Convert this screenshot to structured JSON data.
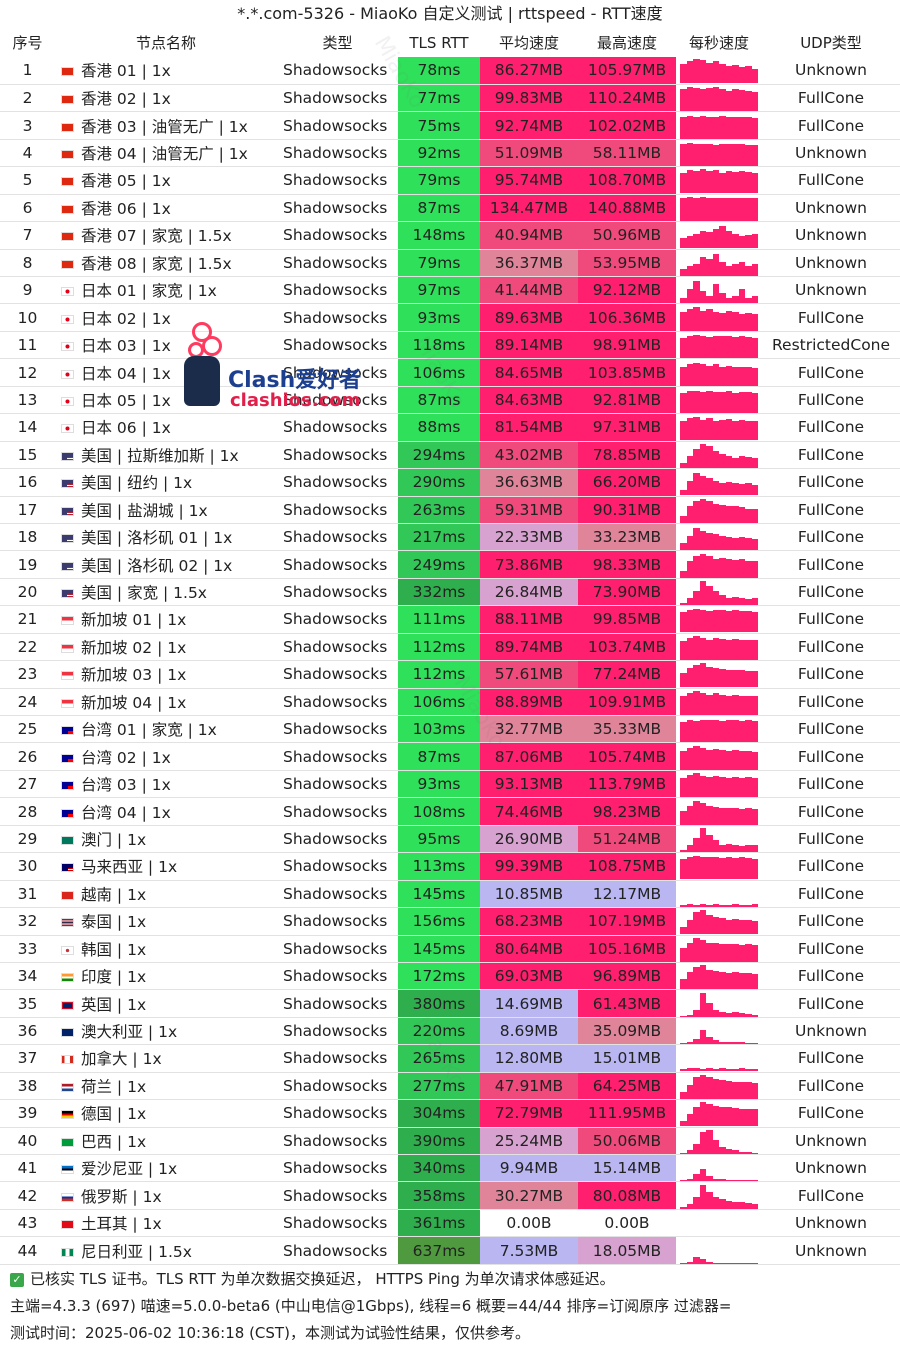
{
  "title": "*.*.com-5326 - MiaoKo 自定义测试 | rttspeed - RTT速度",
  "headers": [
    "序号",
    "节点名称",
    "类型",
    "TLS RTT",
    "平均速度",
    "最高速度",
    "每秒速度",
    "UDP类型"
  ],
  "watermark": "MiaoKo",
  "logo": {
    "text1": "Clash爱好者",
    "text2": "clashios.com"
  },
  "colors": {
    "rtt_green": "#2fe05a",
    "fast_pink": "#ff1f6e",
    "mid_pink": "#e0849a",
    "slow_lavender": "#b9b6f2",
    "spark": "#ff1f6e"
  },
  "rows": [
    {
      "idx": "1",
      "flag": "hk",
      "name": "香港 01 | 1x",
      "type": "Shadowsocks",
      "rtt": "78ms",
      "avg": "86.27MB",
      "max": "105.97MB",
      "udp": "Unknown",
      "speed_level": [
        0.8,
        0.9,
        1,
        0.95,
        0.85,
        0.9,
        0.8,
        0.7,
        0.75,
        0.65,
        0.7,
        0.6
      ]
    },
    {
      "idx": "2",
      "flag": "hk",
      "name": "香港 02 | 1x",
      "type": "Shadowsocks",
      "rtt": "77ms",
      "avg": "99.83MB",
      "max": "110.24MB",
      "udp": "FullCone",
      "speed_level": [
        0.9,
        1,
        0.95,
        0.9,
        0.95,
        1,
        0.9,
        0.85,
        0.9,
        0.88,
        0.85,
        0.8
      ]
    },
    {
      "idx": "3",
      "flag": "hk",
      "name": "香港 03 | 油管无广 | 1x",
      "type": "Shadowsocks",
      "rtt": "75ms",
      "avg": "92.74MB",
      "max": "102.02MB",
      "udp": "FullCone",
      "speed_level": [
        0.9,
        0.95,
        0.9,
        0.95,
        0.9,
        0.9,
        0.95,
        0.9,
        0.92,
        0.9,
        0.9,
        0.88
      ]
    },
    {
      "idx": "4",
      "flag": "hk",
      "name": "香港 04 | 油管无广 | 1x",
      "type": "Shadowsocks",
      "rtt": "92ms",
      "avg": "51.09MB",
      "max": "58.11MB",
      "udp": "Unknown",
      "speed_level": [
        0.9,
        0.95,
        0.9,
        0.92,
        0.9,
        0.88,
        0.9,
        0.92,
        0.9,
        0.9,
        0.88,
        0.86
      ]
    },
    {
      "idx": "5",
      "flag": "hk",
      "name": "香港 05 | 1x",
      "type": "Shadowsocks",
      "rtt": "79ms",
      "avg": "95.74MB",
      "max": "108.70MB",
      "udp": "FullCone",
      "speed_level": [
        0.85,
        0.95,
        0.9,
        1,
        0.9,
        0.95,
        0.85,
        0.9,
        0.88,
        0.9,
        0.86,
        0.84
      ]
    },
    {
      "idx": "6",
      "flag": "hk",
      "name": "香港 06 | 1x",
      "type": "Shadowsocks",
      "rtt": "87ms",
      "avg": "134.47MB",
      "max": "140.88MB",
      "udp": "Unknown",
      "speed_level": [
        0.95,
        1,
        0.95,
        0.98,
        0.95,
        0.96,
        0.95,
        0.97,
        0.95,
        0.96,
        0.94,
        0.95
      ]
    },
    {
      "idx": "7",
      "flag": "hk",
      "name": "香港 07 | 家宽 | 1.5x",
      "type": "Shadowsocks",
      "rtt": "148ms",
      "avg": "40.94MB",
      "max": "50.96MB",
      "udp": "Unknown",
      "speed_level": [
        0.4,
        0.5,
        0.6,
        0.7,
        0.65,
        0.8,
        0.9,
        0.7,
        0.6,
        0.5,
        0.55,
        0.6
      ]
    },
    {
      "idx": "8",
      "flag": "hk",
      "name": "香港 08 | 家宽 | 1.5x",
      "type": "Shadowsocks",
      "rtt": "79ms",
      "avg": "36.37MB",
      "max": "53.95MB",
      "udp": "Unknown",
      "speed_level": [
        0.3,
        0.4,
        0.5,
        0.8,
        0.7,
        0.9,
        0.6,
        0.4,
        0.5,
        0.6,
        0.4,
        0.5
      ]
    },
    {
      "idx": "9",
      "flag": "jp",
      "name": "日本 01 | 家宽 | 1x",
      "type": "Shadowsocks",
      "rtt": "97ms",
      "avg": "41.44MB",
      "max": "92.12MB",
      "udp": "Unknown",
      "speed_level": [
        0.2,
        0.6,
        0.9,
        0.5,
        0.3,
        0.8,
        0.4,
        0.2,
        0.3,
        0.6,
        0.2,
        0.3
      ]
    },
    {
      "idx": "10",
      "flag": "jp",
      "name": "日本 02 | 1x",
      "type": "Shadowsocks",
      "rtt": "93ms",
      "avg": "89.63MB",
      "max": "106.36MB",
      "udp": "FullCone",
      "speed_level": [
        0.8,
        0.9,
        1,
        0.85,
        0.9,
        0.8,
        0.75,
        0.85,
        0.8,
        0.7,
        0.75,
        0.7
      ]
    },
    {
      "idx": "11",
      "flag": "jp",
      "name": "日本 03 | 1x",
      "type": "Shadowsocks",
      "rtt": "118ms",
      "avg": "89.14MB",
      "max": "98.91MB",
      "udp": "RestrictedCone",
      "speed_level": [
        0.85,
        0.9,
        0.95,
        0.9,
        0.88,
        0.9,
        0.92,
        0.9,
        0.88,
        0.9,
        0.86,
        0.85
      ]
    },
    {
      "idx": "12",
      "flag": "jp",
      "name": "日本 04 | 1x",
      "type": "Shadowsocks",
      "rtt": "106ms",
      "avg": "84.65MB",
      "max": "103.85MB",
      "udp": "FullCone",
      "speed_level": [
        0.8,
        0.9,
        0.95,
        0.9,
        0.85,
        0.9,
        0.8,
        0.85,
        0.8,
        0.78,
        0.8,
        0.75
      ]
    },
    {
      "idx": "13",
      "flag": "jp",
      "name": "日本 05 | 1x",
      "type": "Shadowsocks",
      "rtt": "87ms",
      "avg": "84.63MB",
      "max": "92.81MB",
      "udp": "FullCone",
      "speed_level": [
        0.85,
        0.9,
        0.9,
        0.88,
        0.9,
        0.86,
        0.88,
        0.9,
        0.85,
        0.87,
        0.86,
        0.84
      ]
    },
    {
      "idx": "14",
      "flag": "jp",
      "name": "日本 06 | 1x",
      "type": "Shadowsocks",
      "rtt": "88ms",
      "avg": "81.54MB",
      "max": "97.31MB",
      "udp": "FullCone",
      "speed_level": [
        0.8,
        0.9,
        0.95,
        0.85,
        0.9,
        0.8,
        0.85,
        0.88,
        0.8,
        0.82,
        0.78,
        0.8
      ]
    },
    {
      "idx": "15",
      "flag": "us",
      "name": "美国 | 拉斯维加斯 | 1x",
      "type": "Shadowsocks",
      "rtt": "294ms",
      "avg": "43.02MB",
      "max": "78.85MB",
      "udp": "FullCone",
      "speed_level": [
        0.2,
        0.5,
        0.8,
        1,
        0.9,
        0.7,
        0.6,
        0.5,
        0.4,
        0.5,
        0.45,
        0.4
      ]
    },
    {
      "idx": "16",
      "flag": "us",
      "name": "美国 | 纽约 | 1x",
      "type": "Shadowsocks",
      "rtt": "290ms",
      "avg": "36.63MB",
      "max": "66.20MB",
      "udp": "FullCone",
      "speed_level": [
        0.2,
        0.6,
        0.9,
        0.8,
        0.7,
        0.6,
        0.5,
        0.55,
        0.5,
        0.45,
        0.5,
        0.4
      ]
    },
    {
      "idx": "17",
      "flag": "us",
      "name": "美国 | 盐湖城 | 1x",
      "type": "Shadowsocks",
      "rtt": "263ms",
      "avg": "59.31MB",
      "max": "90.31MB",
      "udp": "FullCone",
      "speed_level": [
        0.3,
        0.7,
        0.9,
        1,
        0.9,
        0.8,
        0.75,
        0.7,
        0.7,
        0.65,
        0.6,
        0.6
      ]
    },
    {
      "idx": "18",
      "flag": "us",
      "name": "美国 | 洛杉矶 01 | 1x",
      "type": "Shadowsocks",
      "rtt": "217ms",
      "avg": "22.33MB",
      "max": "33.23MB",
      "udp": "FullCone",
      "speed_level": [
        0.3,
        0.6,
        0.9,
        0.8,
        0.7,
        0.65,
        0.6,
        0.55,
        0.5,
        0.55,
        0.5,
        0.45
      ]
    },
    {
      "idx": "19",
      "flag": "us",
      "name": "美国 | 洛杉矶 02 | 1x",
      "type": "Shadowsocks",
      "rtt": "249ms",
      "avg": "73.86MB",
      "max": "98.33MB",
      "udp": "FullCone",
      "speed_level": [
        0.3,
        0.7,
        0.9,
        1,
        0.9,
        0.8,
        0.85,
        0.8,
        0.75,
        0.8,
        0.7,
        0.72
      ]
    },
    {
      "idx": "20",
      "flag": "us",
      "name": "美国 | 家宽 | 1.5x",
      "type": "Shadowsocks",
      "rtt": "332ms",
      "avg": "26.84MB",
      "max": "73.90MB",
      "udp": "FullCone",
      "speed_level": [
        0.1,
        0.3,
        0.6,
        1,
        0.8,
        0.6,
        0.4,
        0.3,
        0.35,
        0.3,
        0.25,
        0.3
      ]
    },
    {
      "idx": "21",
      "flag": "sg",
      "name": "新加坡 01 | 1x",
      "type": "Shadowsocks",
      "rtt": "111ms",
      "avg": "88.11MB",
      "max": "99.85MB",
      "udp": "FullCone",
      "speed_level": [
        0.85,
        0.9,
        0.95,
        0.9,
        0.88,
        0.92,
        0.9,
        0.88,
        0.9,
        0.86,
        0.88,
        0.85
      ]
    },
    {
      "idx": "22",
      "flag": "sg",
      "name": "新加坡 02 | 1x",
      "type": "Shadowsocks",
      "rtt": "112ms",
      "avg": "89.74MB",
      "max": "103.74MB",
      "udp": "FullCone",
      "speed_level": [
        0.8,
        0.9,
        1,
        0.9,
        0.85,
        0.9,
        0.88,
        0.85,
        0.86,
        0.84,
        0.85,
        0.82
      ]
    },
    {
      "idx": "23",
      "flag": "sg",
      "name": "新加坡 03 | 1x",
      "type": "Shadowsocks",
      "rtt": "112ms",
      "avg": "57.61MB",
      "max": "77.24MB",
      "udp": "FullCone",
      "speed_level": [
        0.6,
        0.8,
        0.9,
        1,
        0.85,
        0.8,
        0.75,
        0.7,
        0.72,
        0.7,
        0.68,
        0.65
      ]
    },
    {
      "idx": "24",
      "flag": "sg",
      "name": "新加坡 04 | 1x",
      "type": "Shadowsocks",
      "rtt": "106ms",
      "avg": "88.89MB",
      "max": "109.91MB",
      "udp": "FullCone",
      "speed_level": [
        0.8,
        0.9,
        1,
        0.92,
        0.85,
        0.9,
        0.82,
        0.8,
        0.85,
        0.8,
        0.78,
        0.8
      ]
    },
    {
      "idx": "25",
      "flag": "tw",
      "name": "台湾 01 | 家宽 | 1x",
      "type": "Shadowsocks",
      "rtt": "103ms",
      "avg": "32.77MB",
      "max": "35.33MB",
      "udp": "FullCone",
      "speed_level": [
        0.85,
        0.9,
        0.88,
        0.9,
        0.92,
        0.9,
        0.88,
        0.9,
        0.9,
        0.88,
        0.9,
        0.88
      ]
    },
    {
      "idx": "26",
      "flag": "tw",
      "name": "台湾 02 | 1x",
      "type": "Shadowsocks",
      "rtt": "87ms",
      "avg": "87.06MB",
      "max": "105.74MB",
      "udp": "FullCone",
      "speed_level": [
        0.8,
        0.9,
        1,
        0.9,
        0.85,
        0.88,
        0.82,
        0.8,
        0.82,
        0.8,
        0.78,
        0.76
      ]
    },
    {
      "idx": "27",
      "flag": "tw",
      "name": "台湾 03 | 1x",
      "type": "Shadowsocks",
      "rtt": "93ms",
      "avg": "93.13MB",
      "max": "113.79MB",
      "udp": "FullCone",
      "speed_level": [
        0.8,
        0.9,
        1,
        0.88,
        0.84,
        0.86,
        0.82,
        0.8,
        0.84,
        0.8,
        0.82,
        0.78
      ]
    },
    {
      "idx": "28",
      "flag": "tw",
      "name": "台湾 04 | 1x",
      "type": "Shadowsocks",
      "rtt": "108ms",
      "avg": "74.46MB",
      "max": "98.23MB",
      "udp": "FullCone",
      "speed_level": [
        0.6,
        0.8,
        1,
        0.9,
        0.8,
        0.76,
        0.7,
        0.72,
        0.7,
        0.68,
        0.7,
        0.66
      ]
    },
    {
      "idx": "29",
      "flag": "mo",
      "name": "澳门 | 1x",
      "type": "Shadowsocks",
      "rtt": "95ms",
      "avg": "26.90MB",
      "max": "51.24MB",
      "udp": "FullCone",
      "speed_level": [
        0.1,
        0.3,
        0.6,
        1,
        0.7,
        0.5,
        0.3,
        0.35,
        0.3,
        0.25,
        0.3,
        0.28
      ]
    },
    {
      "idx": "30",
      "flag": "my",
      "name": "马来西亚 | 1x",
      "type": "Shadowsocks",
      "rtt": "113ms",
      "avg": "99.39MB",
      "max": "108.75MB",
      "udp": "FullCone",
      "speed_level": [
        0.85,
        0.9,
        0.95,
        0.9,
        0.92,
        0.9,
        0.88,
        0.9,
        0.88,
        0.9,
        0.86,
        0.85
      ]
    },
    {
      "idx": "31",
      "flag": "vn",
      "name": "越南 | 1x",
      "type": "Shadowsocks",
      "rtt": "145ms",
      "avg": "10.85MB",
      "max": "12.17MB",
      "udp": "FullCone",
      "speed_level": [
        0.1,
        0.12,
        0.1,
        0.12,
        0.1,
        0.11,
        0.1,
        0.1,
        0.12,
        0.1,
        0.1,
        0.11
      ]
    },
    {
      "idx": "32",
      "flag": "th",
      "name": "泰国 | 1x",
      "type": "Shadowsocks",
      "rtt": "156ms",
      "avg": "68.23MB",
      "max": "107.19MB",
      "udp": "FullCone",
      "speed_level": [
        0.3,
        0.6,
        0.9,
        1,
        0.8,
        0.7,
        0.65,
        0.6,
        0.62,
        0.6,
        0.58,
        0.55
      ]
    },
    {
      "idx": "33",
      "flag": "kr",
      "name": "韩国 | 1x",
      "type": "Shadowsocks",
      "rtt": "145ms",
      "avg": "80.64MB",
      "max": "105.16MB",
      "udp": "FullCone",
      "speed_level": [
        0.6,
        0.8,
        1,
        0.9,
        0.8,
        0.78,
        0.75,
        0.76,
        0.74,
        0.72,
        0.74,
        0.7
      ]
    },
    {
      "idx": "34",
      "flag": "in",
      "name": "印度 | 1x",
      "type": "Shadowsocks",
      "rtt": "172ms",
      "avg": "69.03MB",
      "max": "96.89MB",
      "udp": "FullCone",
      "speed_level": [
        0.4,
        0.7,
        0.9,
        1,
        0.8,
        0.75,
        0.7,
        0.68,
        0.7,
        0.66,
        0.65,
        0.62
      ]
    },
    {
      "idx": "35",
      "flag": "gb",
      "name": "英国 | 1x",
      "type": "Shadowsocks",
      "rtt": "380ms",
      "avg": "14.69MB",
      "max": "61.43MB",
      "udp": "FullCone",
      "speed_level": [
        0.05,
        0.1,
        0.3,
        1,
        0.6,
        0.3,
        0.2,
        0.15,
        0.2,
        0.15,
        0.12,
        0.1
      ]
    },
    {
      "idx": "36",
      "flag": "au",
      "name": "澳大利亚 | 1x",
      "type": "Shadowsocks",
      "rtt": "220ms",
      "avg": "8.69MB",
      "max": "35.09MB",
      "udp": "Unknown",
      "speed_level": [
        0.05,
        0.1,
        0.2,
        0.6,
        0.3,
        0.15,
        0.1,
        0.08,
        0.1,
        0.08,
        0.06,
        0.05
      ]
    },
    {
      "idx": "37",
      "flag": "ca",
      "name": "加拿大 | 1x",
      "type": "Shadowsocks",
      "rtt": "265ms",
      "avg": "12.80MB",
      "max": "15.01MB",
      "udp": "FullCone",
      "speed_level": [
        0.1,
        0.12,
        0.11,
        0.1,
        0.12,
        0.1,
        0.11,
        0.1,
        0.1,
        0.11,
        0.1,
        0.1
      ]
    },
    {
      "idx": "38",
      "flag": "nl",
      "name": "荷兰 | 1x",
      "type": "Shadowsocks",
      "rtt": "277ms",
      "avg": "47.91MB",
      "max": "64.25MB",
      "udp": "FullCone",
      "speed_level": [
        0.3,
        0.6,
        0.9,
        1,
        0.9,
        0.85,
        0.8,
        0.75,
        0.7,
        0.72,
        0.7,
        0.68
      ]
    },
    {
      "idx": "39",
      "flag": "de",
      "name": "德国 | 1x",
      "type": "Shadowsocks",
      "rtt": "304ms",
      "avg": "72.79MB",
      "max": "111.95MB",
      "udp": "FullCone",
      "speed_level": [
        0.2,
        0.5,
        0.8,
        1,
        0.9,
        0.85,
        0.8,
        0.78,
        0.75,
        0.72,
        0.7,
        0.7
      ]
    },
    {
      "idx": "40",
      "flag": "br",
      "name": "巴西 | 1x",
      "type": "Shadowsocks",
      "rtt": "390ms",
      "avg": "25.24MB",
      "max": "50.06MB",
      "udp": "Unknown",
      "speed_level": [
        0.05,
        0.15,
        0.4,
        0.9,
        1,
        0.6,
        0.3,
        0.2,
        0.15,
        0.1,
        0.08,
        0.05
      ]
    },
    {
      "idx": "41",
      "flag": "ee",
      "name": "爱沙尼亚 | 1x",
      "type": "Shadowsocks",
      "rtt": "340ms",
      "avg": "9.94MB",
      "max": "15.14MB",
      "udp": "Unknown",
      "speed_level": [
        0.05,
        0.1,
        0.3,
        0.5,
        0.2,
        0.1,
        0.08,
        0.05,
        0.06,
        0.05,
        0.04,
        0.05
      ]
    },
    {
      "idx": "42",
      "flag": "ru",
      "name": "俄罗斯 | 1x",
      "type": "Shadowsocks",
      "rtt": "358ms",
      "avg": "30.27MB",
      "max": "80.08MB",
      "udp": "FullCone",
      "speed_level": [
        0.1,
        0.2,
        0.5,
        1,
        0.7,
        0.5,
        0.4,
        0.35,
        0.3,
        0.3,
        0.25,
        0.2
      ]
    },
    {
      "idx": "43",
      "flag": "tr",
      "name": "土耳其 | 1x",
      "type": "Shadowsocks",
      "rtt": "361ms",
      "avg": "0.00B",
      "max": "0.00B",
      "udp": "Unknown",
      "speed_level": [
        0,
        0,
        0,
        0,
        0,
        0,
        0,
        0,
        0,
        0,
        0,
        0
      ]
    },
    {
      "idx": "44",
      "flag": "ng",
      "name": "尼日利亚 | 1.5x",
      "type": "Shadowsocks",
      "rtt": "637ms",
      "avg": "7.53MB",
      "max": "18.05MB",
      "udp": "Unknown",
      "speed_level": [
        0.05,
        0.1,
        0.3,
        0.2,
        0.1,
        0.05,
        0.05,
        0.04,
        0.05,
        0.04,
        0.04,
        0.05
      ]
    }
  ],
  "footer": {
    "line1": "已核实 TLS 证书。TLS RTT 为单次数据交换延迟， HTTPS Ping 为单次请求体感延迟。",
    "line2": "主端=4.3.3 (697) 喵速=5.0.0-beta6 (中山电信@1Gbps), 线程=6 概要=44/44 排序=订阅原序 过滤器=",
    "line3": "测试时间：2025-06-02 10:36:18 (CST)，本测试为试验性结果，仅供参考。"
  }
}
